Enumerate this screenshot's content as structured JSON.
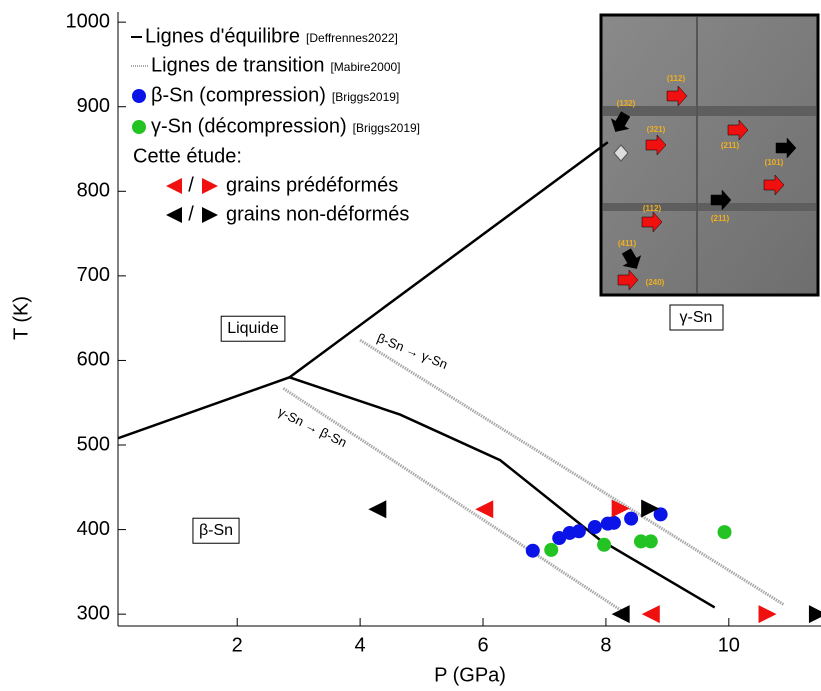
{
  "chart_data": {
    "type": "scatter",
    "xlabel": "P (GPa)",
    "ylabel": "T (K)",
    "xlim": [
      0.06,
      11.5
    ],
    "ylim": [
      286,
      1012
    ],
    "xticks": [
      2,
      4,
      6,
      8,
      10
    ],
    "yticks": [
      300,
      400,
      500,
      600,
      700,
      800,
      900,
      1000
    ],
    "series": [
      {
        "name": "Lignes d'équilibre",
        "source": "[Deffrennes2022]",
        "kind": "line",
        "color": "#000000",
        "x": [
          0.06,
          2.85,
          8.03,
          null,
          2.85,
          4.65,
          6.28,
          7.9,
          9.77
        ],
        "values": [
          508,
          580,
          858,
          null,
          580,
          536,
          482,
          388,
          308
        ]
      },
      {
        "name": "Lignes de transition",
        "source": "[Mabire2000]",
        "kind": "dotted",
        "color": "#a8a8a8",
        "x": [
          4.0,
          10.9,
          null,
          2.75,
          8.36
        ],
        "values": [
          624,
          311,
          null,
          567,
          299
        ]
      },
      {
        "name": "β-Sn (compression)",
        "source": "[Briggs2019]",
        "kind": "dot",
        "color": "#0a14e6",
        "x": [
          6.81,
          7.24,
          7.41,
          7.56,
          7.82,
          8.03,
          8.13,
          8.41,
          8.89
        ],
        "values": [
          375,
          390,
          396,
          398,
          403,
          407,
          408,
          413,
          418
        ]
      },
      {
        "name": "γ-Sn (décompression)",
        "source": "[Briggs2019]",
        "kind": "dot",
        "color": "#22c322",
        "x": [
          7.11,
          7.97,
          8.57,
          8.73,
          9.93
        ],
        "values": [
          376,
          382,
          386,
          386,
          397
        ]
      },
      {
        "name": "grains prédéformés",
        "kind": "triangle",
        "color": "#f01010",
        "markers": [
          "left",
          "left",
          "right",
          "right"
        ],
        "x": [
          6.02,
          8.73,
          8.24,
          10.63
        ],
        "values": [
          424,
          300,
          425,
          300
        ]
      },
      {
        "name": "grains non-déformés",
        "kind": "triangle",
        "color": "#000000",
        "markers": [
          "left",
          "left",
          "right",
          "right"
        ],
        "x": [
          4.28,
          8.24,
          8.72,
          11.45
        ],
        "values": [
          424,
          300,
          425,
          300
        ]
      }
    ],
    "legend_heading": "Cette étude:",
    "legend_separator": "/",
    "regions": [
      "Liquide",
      "β-Sn"
    ],
    "line_annotations": [
      "β-Sn → γ-Sn",
      "γ-Sn → β-Sn"
    ],
    "inset": {
      "caption": "γ-Sn",
      "labels": [
        "(112)",
        "(132)",
        "(321)",
        "(211)",
        "(101)",
        "(112)",
        "(211)",
        "(411)",
        "(240)"
      ]
    }
  }
}
